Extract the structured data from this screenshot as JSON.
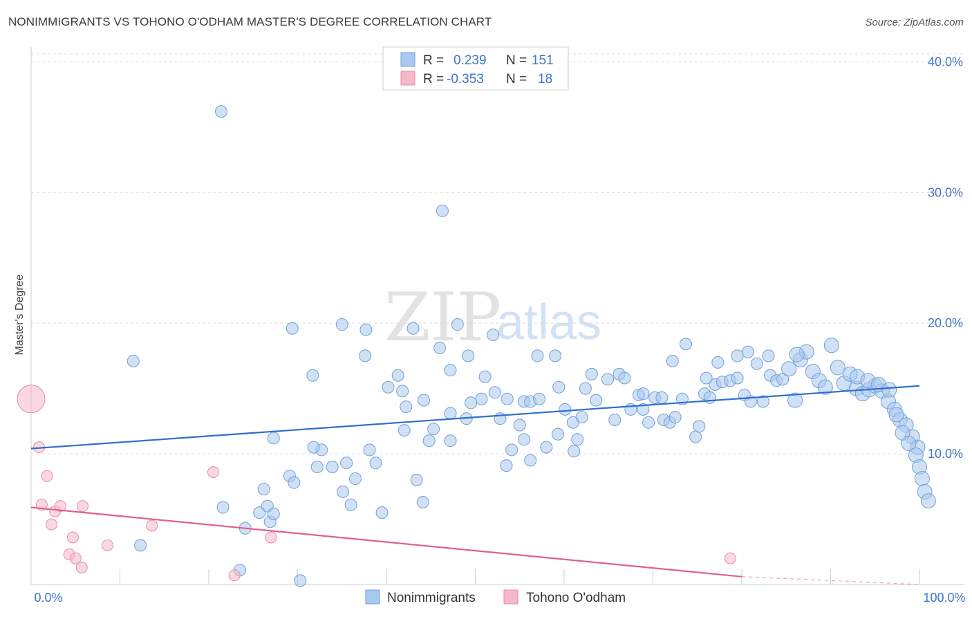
{
  "header": {
    "title": "NONIMMIGRANTS VS TOHONO O'ODHAM MASTER'S DEGREE CORRELATION CHART",
    "source": "Source: ZipAtlas.com"
  },
  "watermark": {
    "zip": "ZIP",
    "atlas": "atlas"
  },
  "legend": {
    "rows": [
      {
        "r_label": "R =",
        "r_value": "0.239",
        "n_label": "N =",
        "n_value": "151",
        "color": "#a9c8ef"
      },
      {
        "r_label": "R =",
        "r_value": "-0.353",
        "n_label": "N =",
        "n_value": "18",
        "color": "#f6b8c9"
      }
    ]
  },
  "bottom_legend": [
    {
      "label": "Nonimmigrants",
      "color": "#a9c8ef"
    },
    {
      "label": "Tohono O'odham",
      "color": "#f6b8c9"
    }
  ],
  "chart_data": {
    "type": "scatter",
    "ylabel": "Master's Degree",
    "xlim": [
      0,
      100
    ],
    "ylim": [
      0,
      40.6
    ],
    "x_tick_labels": [
      {
        "value": 0,
        "label": "0.0%"
      },
      {
        "value": 100,
        "label": "100.0%"
      }
    ],
    "y_tick_labels": [
      {
        "value": 10,
        "label": "10.0%"
      },
      {
        "value": 20,
        "label": "20.0%"
      },
      {
        "value": 30,
        "label": "30.0%"
      },
      {
        "value": 40,
        "label": "40.0%"
      }
    ],
    "grid": true,
    "series": [
      {
        "name": "Nonimmigrants",
        "color": "#a9c8ef",
        "stroke": "#6f9fd8",
        "trend": {
          "x": [
            0,
            100
          ],
          "y": [
            10.4,
            15.2
          ],
          "color": "#2f6fcc"
        },
        "points": [
          [
            21.4,
            36.2
          ],
          [
            46.3,
            28.6
          ],
          [
            11.5,
            17.1
          ],
          [
            29.4,
            19.6
          ],
          [
            35.0,
            19.9
          ],
          [
            37.7,
            19.5
          ],
          [
            43.0,
            19.6
          ],
          [
            48.0,
            19.9
          ],
          [
            31.7,
            16.0
          ],
          [
            37.6,
            17.5
          ],
          [
            41.3,
            16.0
          ],
          [
            46.0,
            18.1
          ],
          [
            47.2,
            16.4
          ],
          [
            49.2,
            17.5
          ],
          [
            52.0,
            19.1
          ],
          [
            57.0,
            17.5
          ],
          [
            59.0,
            17.5
          ],
          [
            40.2,
            15.1
          ],
          [
            41.8,
            14.8
          ],
          [
            42.2,
            13.6
          ],
          [
            44.2,
            14.1
          ],
          [
            42.0,
            11.8
          ],
          [
            44.8,
            11.0
          ],
          [
            45.3,
            11.9
          ],
          [
            47.2,
            13.1
          ],
          [
            47.2,
            11.0
          ],
          [
            49.0,
            12.7
          ],
          [
            49.5,
            13.9
          ],
          [
            50.7,
            14.2
          ],
          [
            51.1,
            15.9
          ],
          [
            52.2,
            14.7
          ],
          [
            52.8,
            12.7
          ],
          [
            53.6,
            14.2
          ],
          [
            55.0,
            12.2
          ],
          [
            55.5,
            14.0
          ],
          [
            56.2,
            14.0
          ],
          [
            57.2,
            14.2
          ],
          [
            59.4,
            15.1
          ],
          [
            60.1,
            13.4
          ],
          [
            61.0,
            12.4
          ],
          [
            62.4,
            15.0
          ],
          [
            63.1,
            16.1
          ],
          [
            63.6,
            14.1
          ],
          [
            64.9,
            15.7
          ],
          [
            65.7,
            12.6
          ],
          [
            66.2,
            16.1
          ],
          [
            66.8,
            15.8
          ],
          [
            67.5,
            13.4
          ],
          [
            68.4,
            14.5
          ],
          [
            68.9,
            13.4
          ],
          [
            69.5,
            12.4
          ],
          [
            70.2,
            14.3
          ],
          [
            71.2,
            12.6
          ],
          [
            71.9,
            12.4
          ],
          [
            72.5,
            12.8
          ],
          [
            73.3,
            14.2
          ],
          [
            74.8,
            11.3
          ],
          [
            75.2,
            12.1
          ],
          [
            75.8,
            14.6
          ],
          [
            76.4,
            14.3
          ],
          [
            77.0,
            15.3
          ],
          [
            77.8,
            15.5
          ],
          [
            78.7,
            15.6
          ],
          [
            79.5,
            15.8
          ],
          [
            80.3,
            14.5
          ],
          [
            81.0,
            14.0
          ],
          [
            81.7,
            16.9
          ],
          [
            82.4,
            14.0
          ],
          [
            83.2,
            16.0
          ],
          [
            83.9,
            15.6
          ],
          [
            84.6,
            15.7
          ],
          [
            85.3,
            16.5
          ],
          [
            86.0,
            14.1
          ],
          [
            86.6,
            17.2
          ],
          [
            87.3,
            17.8
          ],
          [
            88.0,
            16.3
          ],
          [
            88.7,
            15.6
          ],
          [
            89.4,
            15.1
          ],
          [
            90.1,
            18.3
          ],
          [
            90.8,
            16.6
          ],
          [
            91.5,
            15.4
          ],
          [
            92.2,
            16.1
          ],
          [
            92.9,
            15.0
          ],
          [
            93.6,
            14.6
          ],
          [
            94.3,
            14.9
          ],
          [
            95.0,
            15.2
          ],
          [
            95.8,
            14.8
          ],
          [
            96.5,
            14.0
          ],
          [
            97.2,
            13.4
          ],
          [
            97.8,
            12.6
          ],
          [
            98.5,
            12.2
          ],
          [
            99.2,
            11.3
          ],
          [
            99.8,
            10.5
          ],
          [
            73.7,
            18.4
          ],
          [
            72.2,
            17.1
          ],
          [
            77.3,
            17.0
          ],
          [
            79.5,
            17.5
          ],
          [
            80.7,
            17.8
          ],
          [
            83.0,
            17.5
          ],
          [
            86.2,
            17.6
          ],
          [
            68.9,
            14.6
          ],
          [
            71.0,
            14.3
          ],
          [
            76.0,
            15.8
          ],
          [
            93.0,
            15.9
          ],
          [
            94.2,
            15.6
          ],
          [
            95.4,
            15.3
          ],
          [
            96.6,
            14.9
          ],
          [
            97.4,
            13.0
          ],
          [
            98.1,
            11.6
          ],
          [
            98.8,
            10.8
          ],
          [
            99.6,
            9.9
          ],
          [
            100.0,
            9.0
          ],
          [
            100.3,
            8.1
          ],
          [
            100.6,
            7.1
          ],
          [
            101.0,
            6.4
          ],
          [
            27.3,
            11.2
          ],
          [
            32.2,
            9.0
          ],
          [
            32.7,
            10.3
          ],
          [
            31.8,
            10.5
          ],
          [
            33.9,
            9.0
          ],
          [
            35.1,
            7.1
          ],
          [
            35.5,
            9.3
          ],
          [
            36.0,
            6.1
          ],
          [
            36.5,
            8.1
          ],
          [
            38.1,
            10.3
          ],
          [
            38.8,
            9.3
          ],
          [
            39.5,
            5.5
          ],
          [
            43.4,
            8.0
          ],
          [
            44.1,
            6.3
          ],
          [
            29.1,
            8.3
          ],
          [
            29.6,
            7.8
          ],
          [
            25.7,
            5.5
          ],
          [
            26.2,
            7.3
          ],
          [
            26.6,
            6.0
          ],
          [
            26.9,
            4.8
          ],
          [
            27.3,
            5.4
          ],
          [
            24.1,
            4.3
          ],
          [
            21.6,
            5.9
          ],
          [
            23.5,
            1.1
          ],
          [
            30.3,
            0.3
          ],
          [
            12.3,
            3.0
          ],
          [
            53.5,
            9.1
          ],
          [
            54.1,
            10.3
          ],
          [
            55.5,
            11.1
          ],
          [
            56.2,
            9.5
          ],
          [
            58.0,
            10.5
          ],
          [
            59.3,
            11.5
          ],
          [
            61.1,
            10.2
          ],
          [
            61.5,
            11.1
          ],
          [
            62.0,
            12.8
          ]
        ]
      },
      {
        "name": "Tohono O'odham",
        "color": "#f6b8c9",
        "stroke": "#e88aa5",
        "trend": {
          "x": [
            0,
            80
          ],
          "y": [
            5.9,
            0.6
          ],
          "dash_x": [
            80,
            100
          ],
          "dash_y": [
            0.6,
            -0.7
          ],
          "color": "#e06090"
        },
        "points": [
          [
            0.0,
            14.2
          ],
          [
            0.9,
            10.5
          ],
          [
            1.2,
            6.1
          ],
          [
            1.8,
            8.3
          ],
          [
            2.3,
            4.6
          ],
          [
            2.7,
            5.6
          ],
          [
            3.3,
            6.0
          ],
          [
            4.7,
            3.6
          ],
          [
            4.3,
            2.3
          ],
          [
            5.0,
            2.0
          ],
          [
            5.7,
            1.3
          ],
          [
            5.8,
            6.0
          ],
          [
            8.6,
            3.0
          ],
          [
            13.6,
            4.5
          ],
          [
            20.5,
            8.6
          ],
          [
            22.9,
            0.7
          ],
          [
            27.0,
            3.6
          ],
          [
            78.7,
            2.0
          ]
        ],
        "large_first": true
      }
    ]
  }
}
